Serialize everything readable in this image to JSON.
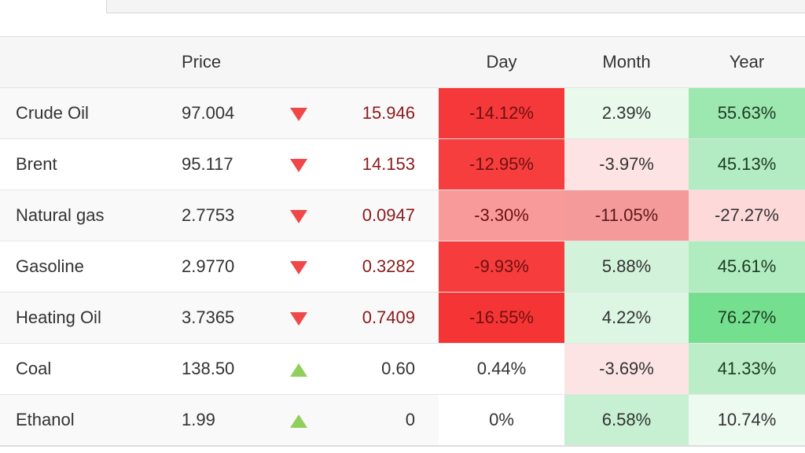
{
  "table": {
    "headers": [
      "",
      "Price",
      "",
      "",
      "Day",
      "Month",
      "Year"
    ],
    "rows": [
      {
        "name": "Crude Oil",
        "price": "97.004",
        "direction": "down-arrow-icon",
        "change": "15.946",
        "day": {
          "text": "-14.12%",
          "bg": "#f5393b",
          "fg": "#6e1010"
        },
        "month": {
          "text": "2.39%",
          "bg": "#e9f9ec",
          "fg": "#333333"
        },
        "year": {
          "text": "55.63%",
          "bg": "#9de7b1",
          "fg": "#1d3b22"
        }
      },
      {
        "name": "Brent",
        "price": "95.117",
        "direction": "down-arrow-icon",
        "change": "14.153",
        "day": {
          "text": "-12.95%",
          "bg": "#f63e3e",
          "fg": "#6e1010"
        },
        "month": {
          "text": "-3.97%",
          "bg": "#fde3e3",
          "fg": "#333333"
        },
        "year": {
          "text": "45.13%",
          "bg": "#b3ecc2",
          "fg": "#1d3b22"
        }
      },
      {
        "name": "Natural gas",
        "price": "2.7753",
        "direction": "down-arrow-icon",
        "change": "0.0947",
        "day": {
          "text": "-3.30%",
          "bg": "#f89a9a",
          "fg": "#6e1010"
        },
        "month": {
          "text": "-11.05%",
          "bg": "#f59a9a",
          "fg": "#5a1818"
        },
        "year": {
          "text": "-27.27%",
          "bg": "#fdd9d9",
          "fg": "#333333"
        }
      },
      {
        "name": "Gasoline",
        "price": "2.9770",
        "direction": "down-arrow-icon",
        "change": "0.3282",
        "day": {
          "text": "-9.93%",
          "bg": "#f63c3c",
          "fg": "#6e1010"
        },
        "month": {
          "text": "5.88%",
          "bg": "#d2f3da",
          "fg": "#333333"
        },
        "year": {
          "text": "45.61%",
          "bg": "#b1ebc0",
          "fg": "#1d3b22"
        }
      },
      {
        "name": "Heating Oil",
        "price": "3.7365",
        "direction": "down-arrow-icon",
        "change": "0.7409",
        "day": {
          "text": "-16.55%",
          "bg": "#f53535",
          "fg": "#6e1010"
        },
        "month": {
          "text": "4.22%",
          "bg": "#ddf6e3",
          "fg": "#333333"
        },
        "year": {
          "text": "76.27%",
          "bg": "#74df8f",
          "fg": "#1d3b22"
        }
      },
      {
        "name": "Coal",
        "price": "138.50",
        "direction": "up-arrow-icon",
        "change": "0.60",
        "day": {
          "text": "0.44%",
          "bg": "#ffffff",
          "fg": "#333333"
        },
        "month": {
          "text": "-3.69%",
          "bg": "#fde4e4",
          "fg": "#333333"
        },
        "year": {
          "text": "41.33%",
          "bg": "#bbeec8",
          "fg": "#1d3b22"
        }
      },
      {
        "name": "Ethanol",
        "price": "1.99",
        "direction": "up-arrow-icon",
        "change": "0",
        "day": {
          "text": "0%",
          "bg": "#ffffff",
          "fg": "#333333"
        },
        "month": {
          "text": "6.58%",
          "bg": "#c6f0d1",
          "fg": "#333333"
        },
        "year": {
          "text": "10.74%",
          "bg": "#edfaf0",
          "fg": "#333333"
        }
      }
    ]
  }
}
